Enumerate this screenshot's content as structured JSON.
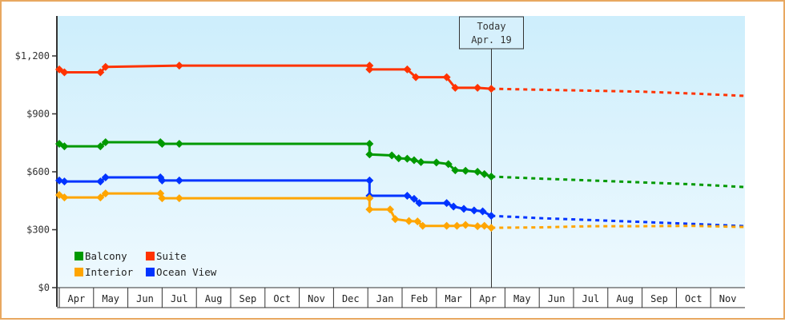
{
  "chart_data": {
    "type": "line",
    "title": "",
    "xlabel": "",
    "ylabel": "",
    "ylim": [
      0,
      1400
    ],
    "y_ticks": [
      {
        "value": 0,
        "label": "$0"
      },
      {
        "value": 300,
        "label": "$300"
      },
      {
        "value": 600,
        "label": "$600"
      },
      {
        "value": 900,
        "label": "$900"
      },
      {
        "value": 1200,
        "label": "$1,200"
      }
    ],
    "x_tick_labels": [
      "Apr",
      "May",
      "Jun",
      "Jul",
      "Aug",
      "Sep",
      "Oct",
      "Nov",
      "Dec",
      "Jan",
      "Feb",
      "Mar",
      "Apr",
      "May",
      "Jun",
      "Jul",
      "Aug",
      "Sep",
      "Oct",
      "Nov"
    ],
    "grid": false,
    "background_gradient": [
      "#cdeefc",
      "#eef9fe"
    ],
    "legend": {
      "position": "lower-left",
      "entries": [
        {
          "name": "Balcony",
          "color": "#009900"
        },
        {
          "name": "Suite",
          "color": "#ff3300"
        },
        {
          "name": "Interior",
          "color": "#ffa500"
        },
        {
          "name": "Ocean View",
          "color": "#0033ff"
        }
      ]
    },
    "annotation": {
      "line1": "Today",
      "line2": "Apr. 19",
      "month_index": 12.6
    },
    "series": [
      {
        "name": "Suite",
        "color": "#ff3300",
        "history": [
          [
            0.0,
            1130
          ],
          [
            0.15,
            1115
          ],
          [
            1.2,
            1115
          ],
          [
            1.35,
            1143
          ],
          [
            3.5,
            1150
          ],
          [
            9.05,
            1150
          ],
          [
            9.05,
            1130
          ],
          [
            10.15,
            1130
          ],
          [
            10.4,
            1090
          ],
          [
            11.3,
            1090
          ],
          [
            11.55,
            1035
          ],
          [
            12.2,
            1035
          ],
          [
            12.6,
            1030
          ]
        ],
        "forecast": [
          [
            12.6,
            1030
          ],
          [
            14.0,
            1025
          ],
          [
            15.5,
            1020
          ],
          [
            17.0,
            1015
          ],
          [
            18.5,
            1005
          ],
          [
            20.0,
            993
          ]
        ]
      },
      {
        "name": "Balcony",
        "color": "#009900",
        "history": [
          [
            0.0,
            745
          ],
          [
            0.15,
            732
          ],
          [
            1.2,
            732
          ],
          [
            1.35,
            753
          ],
          [
            2.95,
            753
          ],
          [
            3.0,
            745
          ],
          [
            3.5,
            745
          ],
          [
            9.05,
            745
          ],
          [
            9.05,
            690
          ],
          [
            9.7,
            685
          ],
          [
            9.9,
            670
          ],
          [
            10.15,
            668
          ],
          [
            10.35,
            660
          ],
          [
            10.55,
            650
          ],
          [
            11.0,
            648
          ],
          [
            11.35,
            640
          ],
          [
            11.55,
            608
          ],
          [
            11.85,
            605
          ],
          [
            12.2,
            600
          ],
          [
            12.4,
            588
          ],
          [
            12.6,
            575
          ]
        ],
        "forecast": [
          [
            12.6,
            575
          ],
          [
            14.0,
            565
          ],
          [
            15.5,
            555
          ],
          [
            17.0,
            545
          ],
          [
            18.5,
            535
          ],
          [
            20.0,
            521
          ]
        ]
      },
      {
        "name": "Ocean View",
        "color": "#0033ff",
        "history": [
          [
            0.0,
            555
          ],
          [
            0.15,
            550
          ],
          [
            1.2,
            550
          ],
          [
            1.35,
            571
          ],
          [
            2.95,
            571
          ],
          [
            3.0,
            555
          ],
          [
            3.5,
            555
          ],
          [
            9.05,
            555
          ],
          [
            9.05,
            476
          ],
          [
            10.15,
            476
          ],
          [
            10.35,
            460
          ],
          [
            10.5,
            438
          ],
          [
            11.3,
            438
          ],
          [
            11.5,
            420
          ],
          [
            11.8,
            408
          ],
          [
            12.1,
            400
          ],
          [
            12.35,
            395
          ],
          [
            12.6,
            372
          ]
        ],
        "forecast": [
          [
            12.6,
            372
          ],
          [
            14.0,
            360
          ],
          [
            15.5,
            350
          ],
          [
            17.0,
            340
          ],
          [
            18.5,
            330
          ],
          [
            20.0,
            318
          ]
        ]
      },
      {
        "name": "Interior",
        "color": "#ffa500",
        "history": [
          [
            0.0,
            480
          ],
          [
            0.15,
            467
          ],
          [
            1.2,
            467
          ],
          [
            1.35,
            488
          ],
          [
            2.95,
            488
          ],
          [
            3.0,
            463
          ],
          [
            3.5,
            463
          ],
          [
            9.05,
            463
          ],
          [
            9.05,
            405
          ],
          [
            9.65,
            405
          ],
          [
            9.8,
            355
          ],
          [
            10.2,
            345
          ],
          [
            10.45,
            343
          ],
          [
            10.6,
            320
          ],
          [
            11.3,
            320
          ],
          [
            11.6,
            320
          ],
          [
            11.85,
            325
          ],
          [
            12.2,
            318
          ],
          [
            12.4,
            320
          ],
          [
            12.6,
            310
          ]
        ],
        "forecast": [
          [
            12.6,
            310
          ],
          [
            14.0,
            312
          ],
          [
            15.5,
            318
          ],
          [
            17.0,
            318
          ],
          [
            18.5,
            320
          ],
          [
            20.0,
            314
          ]
        ]
      }
    ]
  }
}
